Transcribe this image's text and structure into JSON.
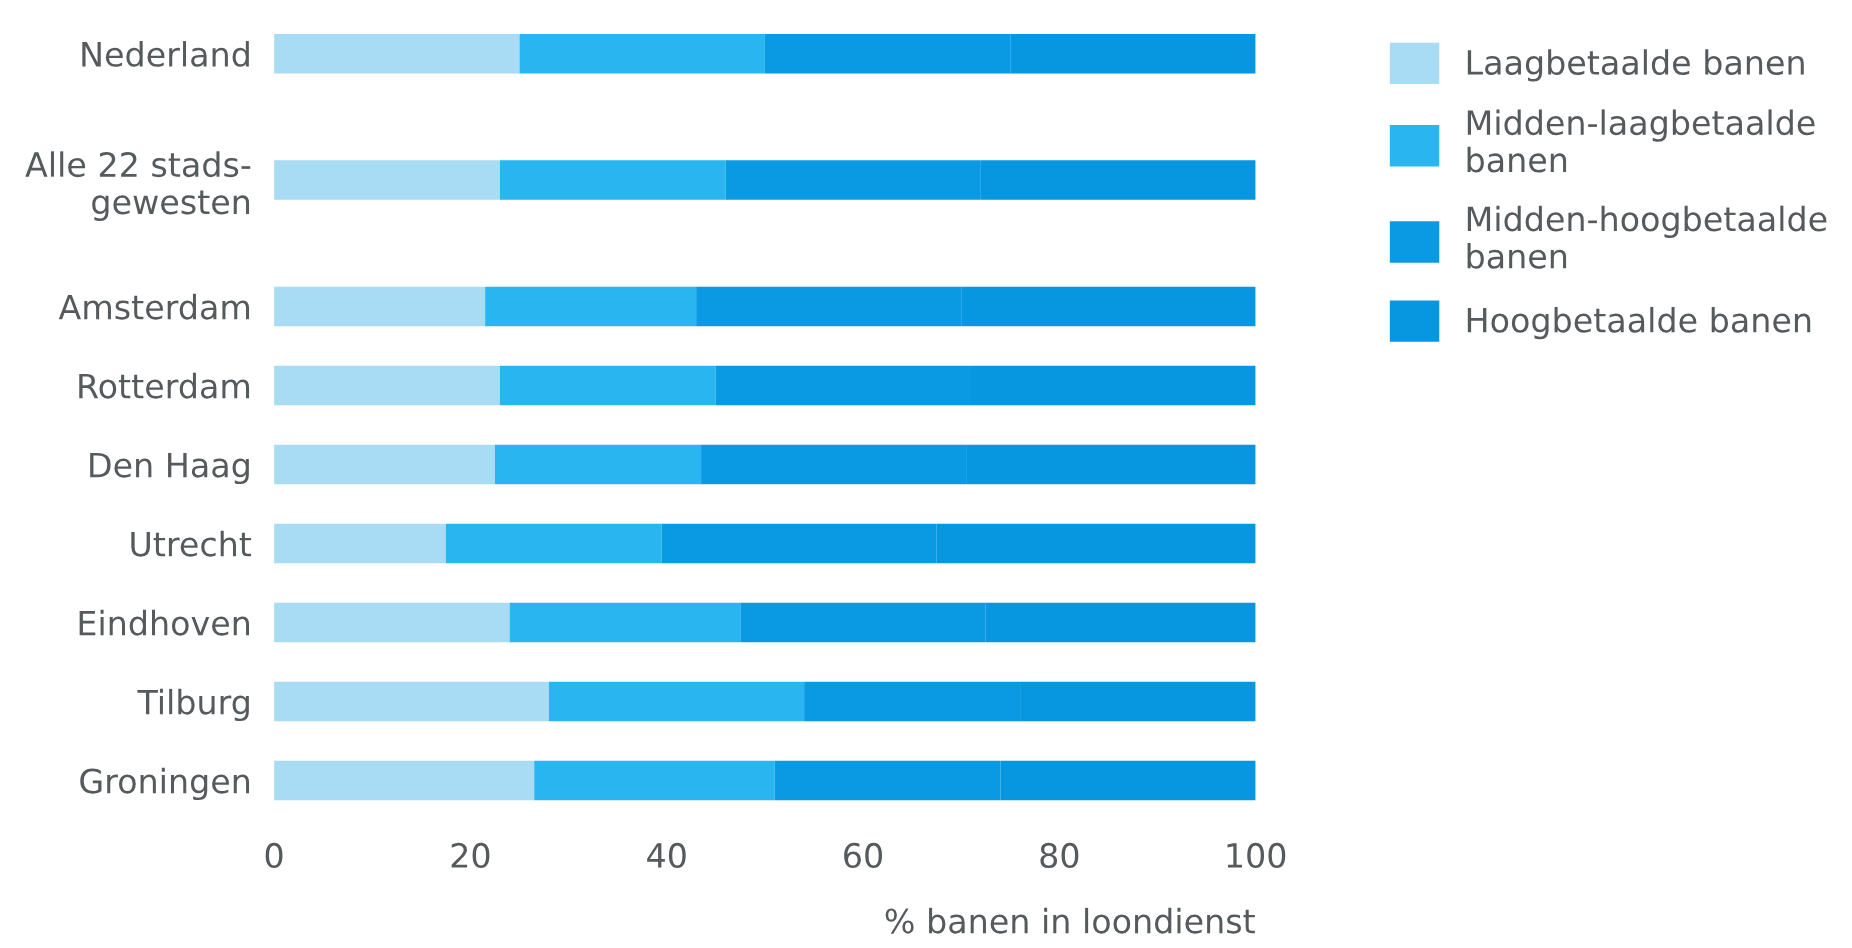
{
  "chart_data": {
    "type": "bar",
    "orientation": "horizontal",
    "stacked": true,
    "categories": [
      "Nederland",
      "Alle 22 stads-\ngewesten",
      "Amsterdam",
      "Rotterdam",
      "Den Haag",
      "Utrecht",
      "Eindhoven",
      "Tilburg",
      "Groningen"
    ],
    "series": [
      {
        "name": "Laagbetaalde banen",
        "color": "#a8dcf5",
        "values": [
          25,
          23,
          21.5,
          23,
          22.5,
          17.5,
          24,
          28,
          26.5
        ]
      },
      {
        "name": "Midden-laagbetaalde banen",
        "color": "#29b6f0",
        "values": [
          25,
          23,
          21.5,
          22,
          21,
          22,
          23.5,
          26,
          24.5
        ]
      },
      {
        "name": "Midden-hoogbetaalde banen",
        "color": "#0a9ae3",
        "values": [
          25,
          26,
          27,
          26,
          27,
          28,
          25,
          22,
          23
        ]
      },
      {
        "name": "Hoogbetaalde banen",
        "color": "#0796e0",
        "values": [
          25,
          28,
          30,
          29,
          29.5,
          32.5,
          27.5,
          24,
          26
        ]
      }
    ],
    "xlim": [
      0,
      100
    ],
    "xticks": [
      0,
      20,
      40,
      60,
      80,
      100
    ],
    "xlabel": "% banen in loondienst",
    "grid": false,
    "legend": "top right"
  }
}
